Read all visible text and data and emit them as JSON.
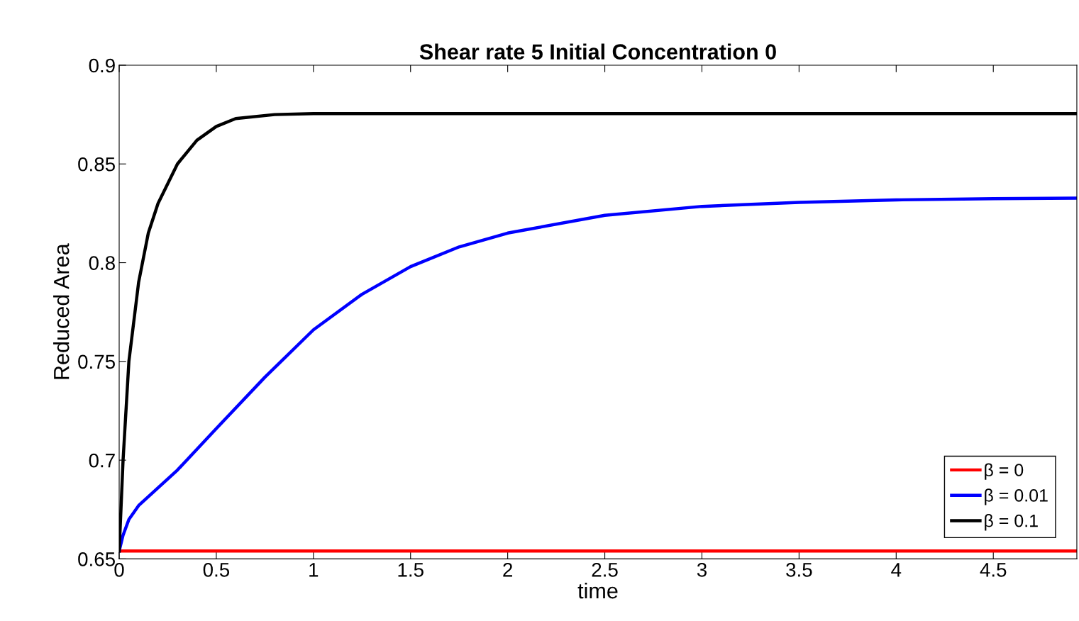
{
  "chart_data": {
    "type": "line",
    "title": "Shear rate 5 Initial Concentration 0",
    "xlabel": "time",
    "ylabel": "Reduced Area",
    "xlim": [
      0,
      4.93
    ],
    "ylim": [
      0.65,
      0.9
    ],
    "xticks": [
      0,
      0.5,
      1,
      1.5,
      2,
      2.5,
      3,
      3.5,
      4,
      4.5
    ],
    "yticks": [
      0.65,
      0.7,
      0.75,
      0.8,
      0.85,
      0.9
    ],
    "grid": false,
    "legend": "bottom right",
    "marker": "none",
    "line_style": "solid",
    "series": [
      {
        "name": "β = 0",
        "color": "#ff0000",
        "x": [
          0,
          1,
          2,
          3,
          4,
          4.93
        ],
        "values": [
          0.654,
          0.654,
          0.654,
          0.654,
          0.654,
          0.654
        ]
      },
      {
        "name": "β = 0.01",
        "color": "#0000ff",
        "x": [
          0,
          0.02,
          0.05,
          0.1,
          0.2,
          0.3,
          0.5,
          0.75,
          1,
          1.25,
          1.5,
          1.75,
          2,
          2.5,
          3,
          3.5,
          4,
          4.5,
          4.93
        ],
        "values": [
          0.654,
          0.662,
          0.67,
          0.677,
          0.686,
          0.695,
          0.716,
          0.742,
          0.766,
          0.784,
          0.798,
          0.808,
          0.815,
          0.824,
          0.8285,
          0.8305,
          0.8318,
          0.8324,
          0.8327
        ]
      },
      {
        "name": "β = 0.1",
        "color": "#000000",
        "x": [
          0,
          0.02,
          0.05,
          0.1,
          0.15,
          0.2,
          0.3,
          0.4,
          0.5,
          0.6,
          0.8,
          1,
          2,
          3,
          4,
          4.93
        ],
        "values": [
          0.654,
          0.7,
          0.75,
          0.79,
          0.815,
          0.83,
          0.85,
          0.862,
          0.869,
          0.873,
          0.875,
          0.8755,
          0.8755,
          0.8755,
          0.8755,
          0.8755
        ]
      }
    ]
  }
}
